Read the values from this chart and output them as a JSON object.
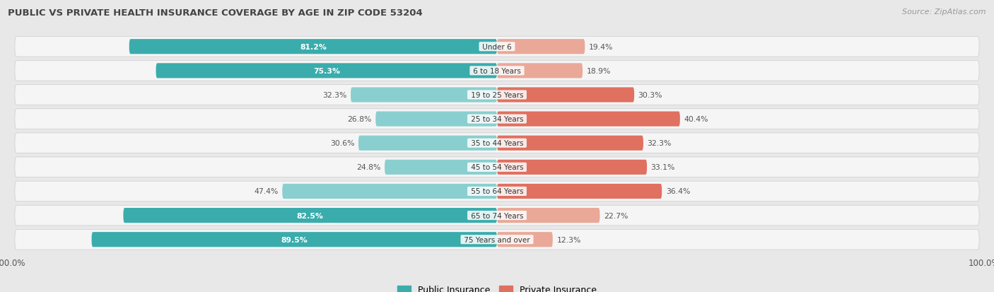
{
  "title": "PUBLIC VS PRIVATE HEALTH INSURANCE COVERAGE BY AGE IN ZIP CODE 53204",
  "source": "Source: ZipAtlas.com",
  "categories": [
    "Under 6",
    "6 to 18 Years",
    "19 to 25 Years",
    "25 to 34 Years",
    "35 to 44 Years",
    "45 to 54 Years",
    "55 to 64 Years",
    "65 to 74 Years",
    "75 Years and over"
  ],
  "public_values": [
    81.2,
    75.3,
    32.3,
    26.8,
    30.6,
    24.8,
    47.4,
    82.5,
    89.5
  ],
  "private_values": [
    19.4,
    18.9,
    30.3,
    40.4,
    32.3,
    33.1,
    36.4,
    22.7,
    12.3
  ],
  "public_color_large": "#3AACAC",
  "public_color_small": "#8ACFCF",
  "private_color_large": "#E07060",
  "private_color_small": "#EAA898",
  "bg_color": "#e8e8e8",
  "row_bg": "#f5f5f5",
  "axis_max": 100.0,
  "legend_public": "Public Insurance",
  "legend_private": "Private Insurance",
  "pub_threshold": 50,
  "priv_threshold": 25,
  "title_fontsize": 9.5,
  "source_fontsize": 8,
  "label_fontsize": 7.5,
  "value_fontsize": 7.8
}
